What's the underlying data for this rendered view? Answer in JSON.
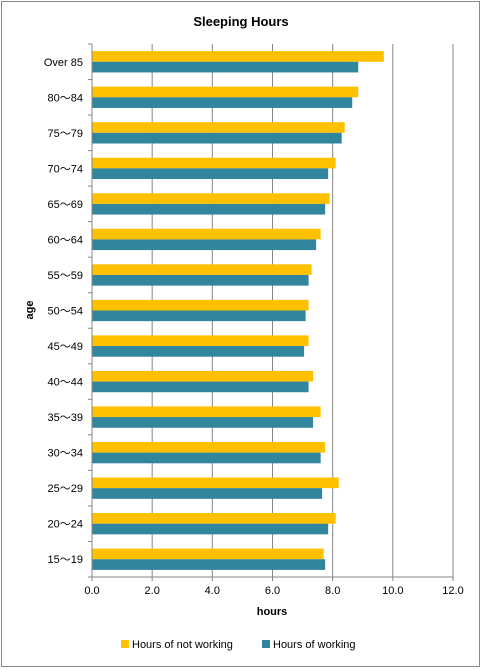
{
  "chart_data": {
    "type": "bar",
    "orientation": "horizontal",
    "title": "Sleeping Hours",
    "xlabel": "hours",
    "ylabel": "age",
    "xlim": [
      0,
      12
    ],
    "xticks": [
      "0.0",
      "2.0",
      "4.0",
      "6.0",
      "8.0",
      "10.0",
      "12.0"
    ],
    "grid": "vertical",
    "legend_position": "bottom",
    "categories": [
      "Over 85",
      "80～84",
      "75～79",
      "70～74",
      "65～69",
      "60～64",
      "55～59",
      "50～54",
      "45～49",
      "40～44",
      "35～39",
      "30～34",
      "25～29",
      "20～24",
      "15～19"
    ],
    "series": [
      {
        "name": "Hours of not working",
        "color": "#FFC000",
        "values": [
          9.7,
          8.85,
          8.4,
          8.1,
          7.9,
          7.6,
          7.3,
          7.2,
          7.2,
          7.35,
          7.6,
          7.75,
          8.2,
          8.1,
          7.7
        ]
      },
      {
        "name": "Hours of working",
        "color": "#31859C",
        "values": [
          8.85,
          8.65,
          8.3,
          7.85,
          7.75,
          7.45,
          7.2,
          7.1,
          7.05,
          7.2,
          7.35,
          7.6,
          7.65,
          7.85,
          7.75
        ]
      }
    ]
  }
}
